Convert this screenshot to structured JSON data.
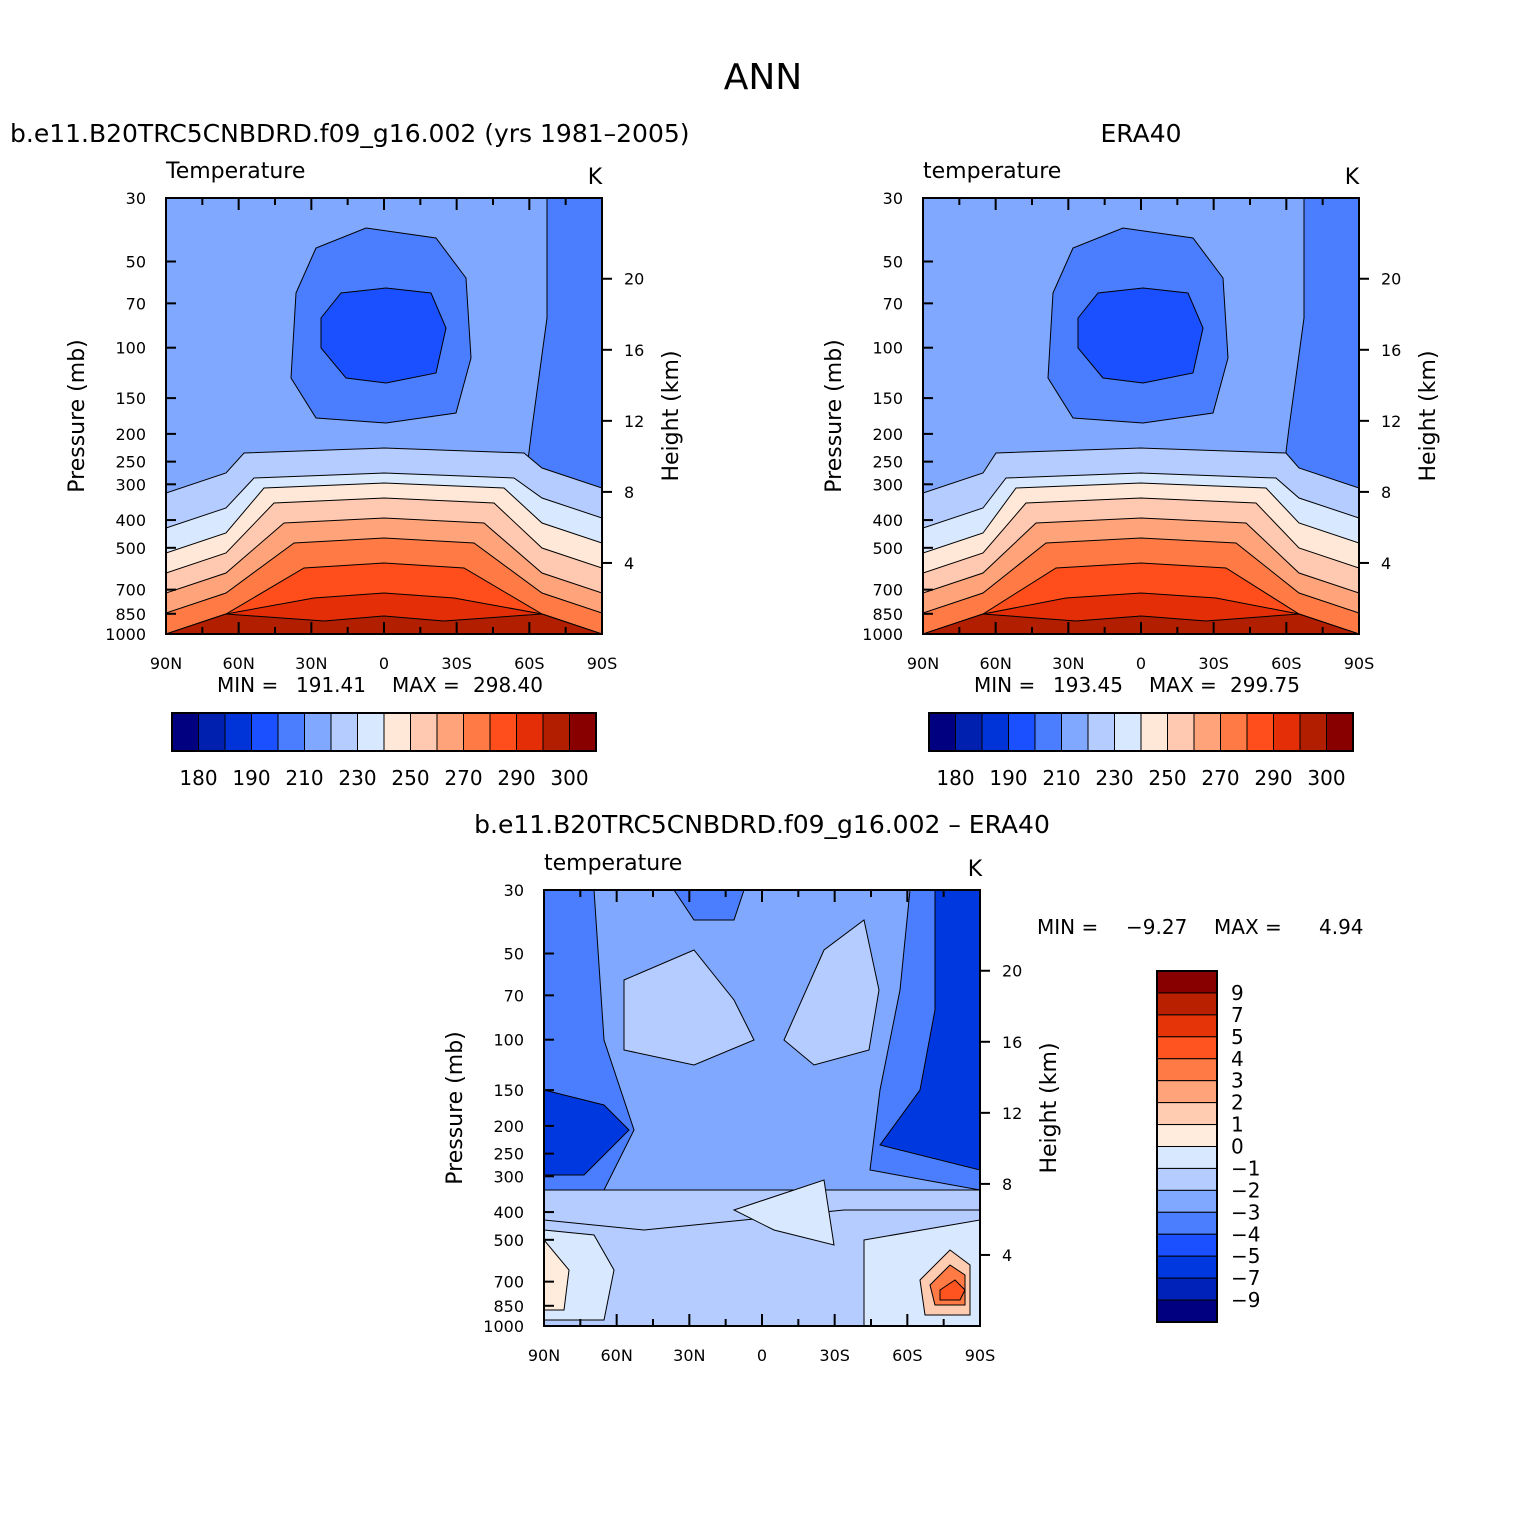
{
  "figure": {
    "title": "ANN",
    "colors": {
      "abs_levels": [
        "#000080",
        "#0020b0",
        "#0034d8",
        "#1a50ff",
        "#4a7eff",
        "#80a8ff",
        "#b4ccff",
        "#d8e8ff",
        "#ffe8d8",
        "#ffc8b0",
        "#ffa47a",
        "#ff7a44",
        "#ff4e1c",
        "#e42e08",
        "#b21e00",
        "#880000"
      ],
      "diff_levels": [
        "#000080",
        "#0022b8",
        "#0038e0",
        "#1a50ff",
        "#4a7eff",
        "#80a8ff",
        "#b4ccff",
        "#d8e8ff",
        "#ffecdc",
        "#ffccb2",
        "#ffa47a",
        "#ff7a44",
        "#ff5420",
        "#e43408",
        "#b82000",
        "#880000"
      ]
    }
  },
  "chart_data": [
    {
      "type": "contour",
      "subtitle": "b.e11.B20TRC5CNBDRD.f09_g16.002 (yrs 1981–2005)",
      "variable": "Temperature",
      "units": "K",
      "ylabel": "Pressure (mb)",
      "ylabel_right": "Height (km)",
      "x_ticks": [
        "90N",
        "60N",
        "30N",
        "0",
        "30S",
        "60S",
        "90S"
      ],
      "y_ticks": [
        30,
        50,
        70,
        100,
        150,
        200,
        250,
        300,
        400,
        500,
        700,
        850,
        1000
      ],
      "y_ticks_right": [
        20,
        16,
        12,
        8,
        4
      ],
      "y_scale": "log",
      "ylim": [
        1000,
        30
      ],
      "stats": {
        "min_label": "MIN =",
        "min": "191.41",
        "max_label": "MAX =",
        "max": "298.40"
      },
      "colorbar": {
        "orientation": "horizontal",
        "levels": [
          180,
          185,
          190,
          200,
          210,
          220,
          230,
          240,
          250,
          260,
          270,
          280,
          290,
          295,
          300
        ],
        "labels": [
          "180",
          "190",
          "210",
          "230",
          "250",
          "270",
          "290",
          "300"
        ]
      },
      "profile": {
        "lat": [
          -90,
          -60,
          -30,
          0,
          30,
          60,
          90
        ],
        "trop_ratio": [
          0.3,
          0.3,
          0.3,
          0.3,
          0.3,
          0.3,
          0.3
        ]
      }
    },
    {
      "type": "contour",
      "subtitle": "ERA40",
      "variable": "temperature",
      "units": "K",
      "ylabel": "Pressure (mb)",
      "ylabel_right": "Height (km)",
      "x_ticks": [
        "90N",
        "60N",
        "30N",
        "0",
        "30S",
        "60S",
        "90S"
      ],
      "y_ticks": [
        30,
        50,
        70,
        100,
        150,
        200,
        250,
        300,
        400,
        500,
        700,
        850,
        1000
      ],
      "y_ticks_right": [
        20,
        16,
        12,
        8,
        4
      ],
      "y_scale": "log",
      "ylim": [
        1000,
        30
      ],
      "stats": {
        "min_label": "MIN =",
        "min": "193.45",
        "max_label": "MAX =",
        "max": "299.75"
      },
      "colorbar": {
        "orientation": "horizontal",
        "levels": [
          180,
          185,
          190,
          200,
          210,
          220,
          230,
          240,
          250,
          260,
          270,
          280,
          290,
          295,
          300
        ],
        "labels": [
          "180",
          "190",
          "210",
          "230",
          "250",
          "270",
          "290",
          "300"
        ]
      }
    },
    {
      "type": "contour",
      "subtitle": "b.e11.B20TRC5CNBDRD.f09_g16.002 – ERA40",
      "variable": "temperature",
      "units": "K",
      "ylabel": "Pressure (mb)",
      "ylabel_right": "Height (km)",
      "x_ticks": [
        "90N",
        "60N",
        "30N",
        "0",
        "30S",
        "60S",
        "90S"
      ],
      "y_ticks": [
        30,
        50,
        70,
        100,
        150,
        200,
        250,
        300,
        400,
        500,
        700,
        850,
        1000
      ],
      "y_ticks_right": [
        20,
        16,
        12,
        8,
        4
      ],
      "y_scale": "log",
      "ylim": [
        1000,
        30
      ],
      "stats": {
        "min_label": "MIN =",
        "min": "−9.27",
        "max_label": "MAX =",
        "max": "4.94"
      },
      "colorbar": {
        "orientation": "vertical",
        "levels": [
          9,
          7,
          5,
          4,
          3,
          2,
          1,
          0,
          -1,
          -2,
          -3,
          -4,
          -5,
          -7,
          -9
        ],
        "labels": [
          "9",
          "7",
          "5",
          "4",
          "3",
          "2",
          "1",
          "0",
          "−1",
          "−2",
          "−3",
          "−4",
          "−5",
          "−7",
          "−9"
        ]
      }
    }
  ]
}
